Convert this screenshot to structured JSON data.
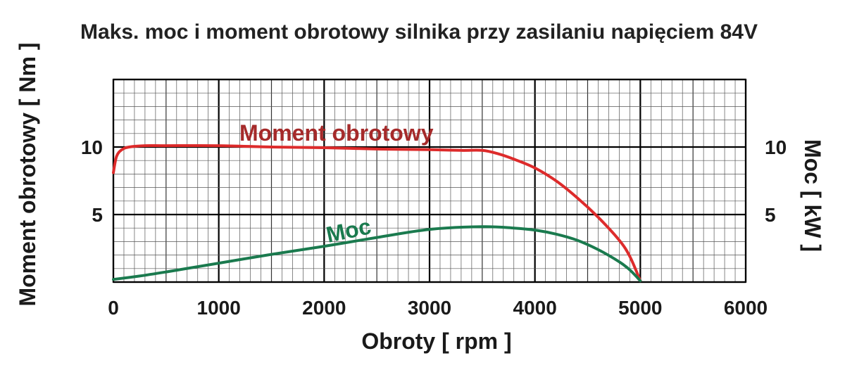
{
  "chart_data": {
    "type": "line",
    "title": "Maks. moc i moment obrotowy silnika przy zasilaniu napięciem 84V",
    "xlabel": "Obroty [ rpm ]",
    "ylabel_left": "Moment obrotowy [ Nm ]",
    "ylabel_right": "Moc [ kW ]",
    "xlim": [
      0,
      6000
    ],
    "ylim_left": [
      0,
      15
    ],
    "ylim_right": [
      0,
      15
    ],
    "x_ticks": [
      "0",
      "1000",
      "2000",
      "3000",
      "4000",
      "5000",
      "6000"
    ],
    "y_ticks_left": [
      "5",
      "10"
    ],
    "y_ticks_right": [
      "5",
      "10"
    ],
    "grid": true,
    "series": [
      {
        "name": "Moment obrotowy",
        "color": "#dd2b2b",
        "label_color": "#a52a2a",
        "axis": "left",
        "x": [
          0,
          30,
          80,
          150,
          300,
          500,
          1000,
          1500,
          2000,
          2500,
          3000,
          3300,
          3500,
          3650,
          3800,
          4000,
          4200,
          4400,
          4600,
          4800,
          4900,
          5000
        ],
        "y": [
          8.1,
          9.3,
          9.8,
          10.0,
          10.1,
          10.1,
          10.1,
          10.0,
          9.95,
          9.85,
          9.8,
          9.75,
          9.75,
          9.5,
          9.1,
          8.45,
          7.5,
          6.25,
          4.8,
          3.1,
          1.9,
          0.1
        ]
      },
      {
        "name": "Moc",
        "color": "#1a7a4e",
        "label_color": "#1a7a4e",
        "axis": "right",
        "x": [
          0,
          250,
          500,
          1000,
          1500,
          2000,
          2500,
          3000,
          3500,
          3800,
          4000,
          4200,
          4400,
          4600,
          4800,
          4900,
          5000
        ],
        "y": [
          0.2,
          0.45,
          0.75,
          1.4,
          2.05,
          2.65,
          3.3,
          3.9,
          4.1,
          4.0,
          3.85,
          3.55,
          3.1,
          2.4,
          1.5,
          0.9,
          0.1
        ]
      }
    ]
  }
}
